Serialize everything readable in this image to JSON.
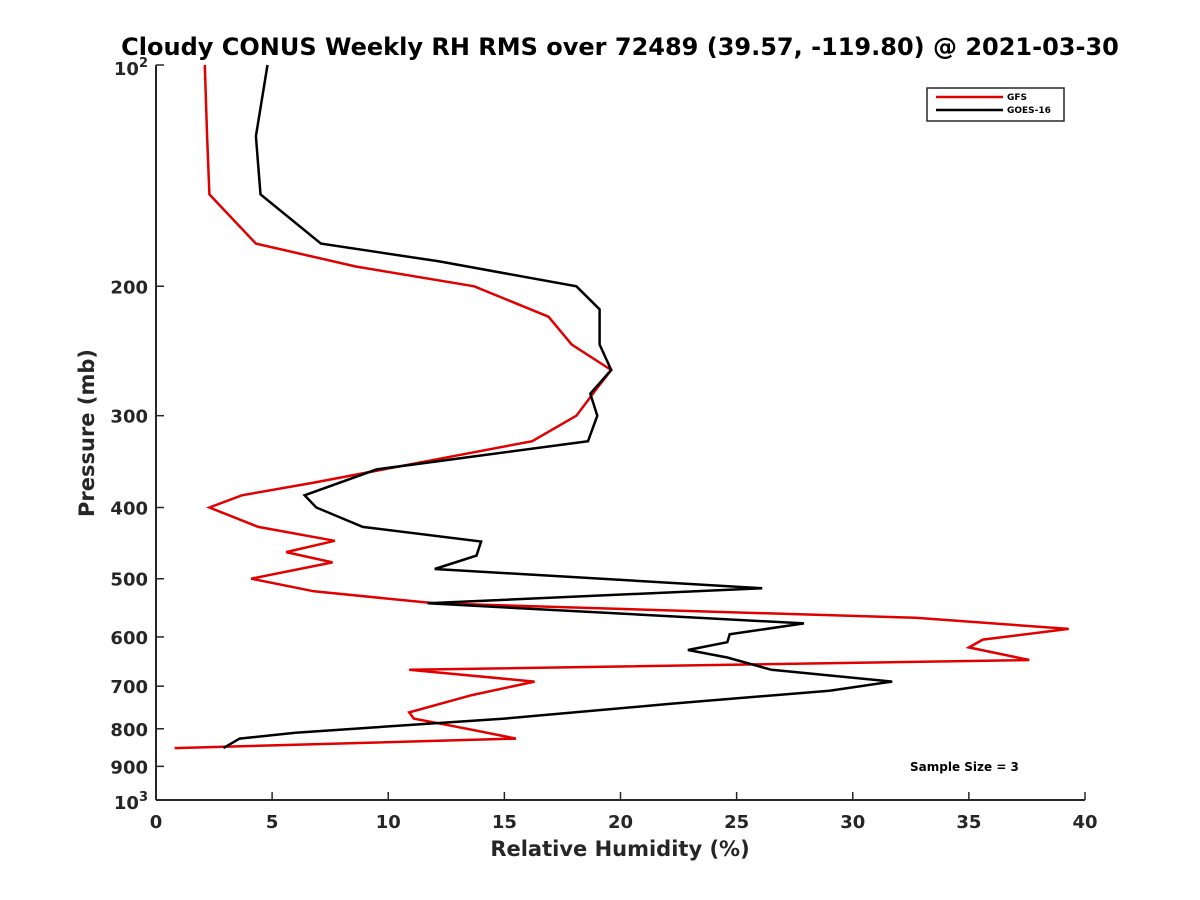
{
  "chart_data": {
    "type": "line",
    "title": "Cloudy CONUS Weekly RH RMS over 72489 (39.57, -119.80) @ 2021-03-30",
    "xlabel": "Relative Humidity (%)",
    "ylabel": "Pressure (mb)",
    "xlim": [
      0,
      40
    ],
    "ylim": [
      100,
      1000
    ],
    "y_scale": "log",
    "y_reversed": true,
    "x_ticks": [
      0,
      5,
      10,
      15,
      20,
      25,
      30,
      35,
      40
    ],
    "y_ticks": [
      200,
      300,
      400,
      500,
      600,
      700,
      800,
      900
    ],
    "y_tick_labels": {
      "base_100": "10",
      "exp_100": "2",
      "base_1000": "10",
      "exp_1000": "3"
    },
    "grid": false,
    "legend_position": "top-right",
    "annotation": "Sample Size = 3",
    "series": [
      {
        "name": "GFS",
        "color": "#e00000",
        "points": [
          [
            2.1,
            100
          ],
          [
            2.2,
            125
          ],
          [
            2.3,
            150
          ],
          [
            4.3,
            175
          ],
          [
            8.6,
            188
          ],
          [
            13.7,
            200
          ],
          [
            16.9,
            220
          ],
          [
            17.9,
            240
          ],
          [
            19.6,
            260
          ],
          [
            19.0,
            275
          ],
          [
            18.1,
            300
          ],
          [
            16.2,
            325
          ],
          [
            6.8,
            370
          ],
          [
            3.7,
            385
          ],
          [
            2.3,
            400
          ],
          [
            4.4,
            425
          ],
          [
            7.7,
            444
          ],
          [
            5.6,
            460
          ],
          [
            7.6,
            475
          ],
          [
            4.1,
            500
          ],
          [
            6.8,
            520
          ],
          [
            12.0,
            540
          ],
          [
            32.7,
            565
          ],
          [
            39.3,
            585
          ],
          [
            35.6,
            605
          ],
          [
            35.0,
            620
          ],
          [
            37.6,
            645
          ],
          [
            10.9,
            665
          ],
          [
            16.3,
            690
          ],
          [
            13.6,
            720
          ],
          [
            10.9,
            760
          ],
          [
            11.1,
            775
          ],
          [
            13.4,
            800
          ],
          [
            15.5,
            825
          ],
          [
            0.8,
            850
          ]
        ]
      },
      {
        "name": "GOES-16",
        "color": "#000000",
        "points": [
          [
            4.8,
            100
          ],
          [
            4.3,
            125
          ],
          [
            4.5,
            150
          ],
          [
            7.1,
            175
          ],
          [
            12.2,
            185
          ],
          [
            18.1,
            200
          ],
          [
            19.1,
            215
          ],
          [
            19.1,
            240
          ],
          [
            19.6,
            260
          ],
          [
            18.7,
            280
          ],
          [
            19.0,
            300
          ],
          [
            18.6,
            325
          ],
          [
            9.5,
            355
          ],
          [
            6.4,
            385
          ],
          [
            6.9,
            400
          ],
          [
            8.9,
            425
          ],
          [
            14.0,
            445
          ],
          [
            13.8,
            465
          ],
          [
            12.0,
            485
          ],
          [
            26.1,
            515
          ],
          [
            11.7,
            540
          ],
          [
            27.9,
            575
          ],
          [
            24.7,
            595
          ],
          [
            24.6,
            610
          ],
          [
            22.9,
            625
          ],
          [
            24.6,
            640
          ],
          [
            26.5,
            665
          ],
          [
            31.7,
            690
          ],
          [
            29.0,
            710
          ],
          [
            22.1,
            740
          ],
          [
            15.0,
            775
          ],
          [
            6.0,
            810
          ],
          [
            3.6,
            825
          ],
          [
            2.9,
            850
          ]
        ]
      }
    ]
  }
}
